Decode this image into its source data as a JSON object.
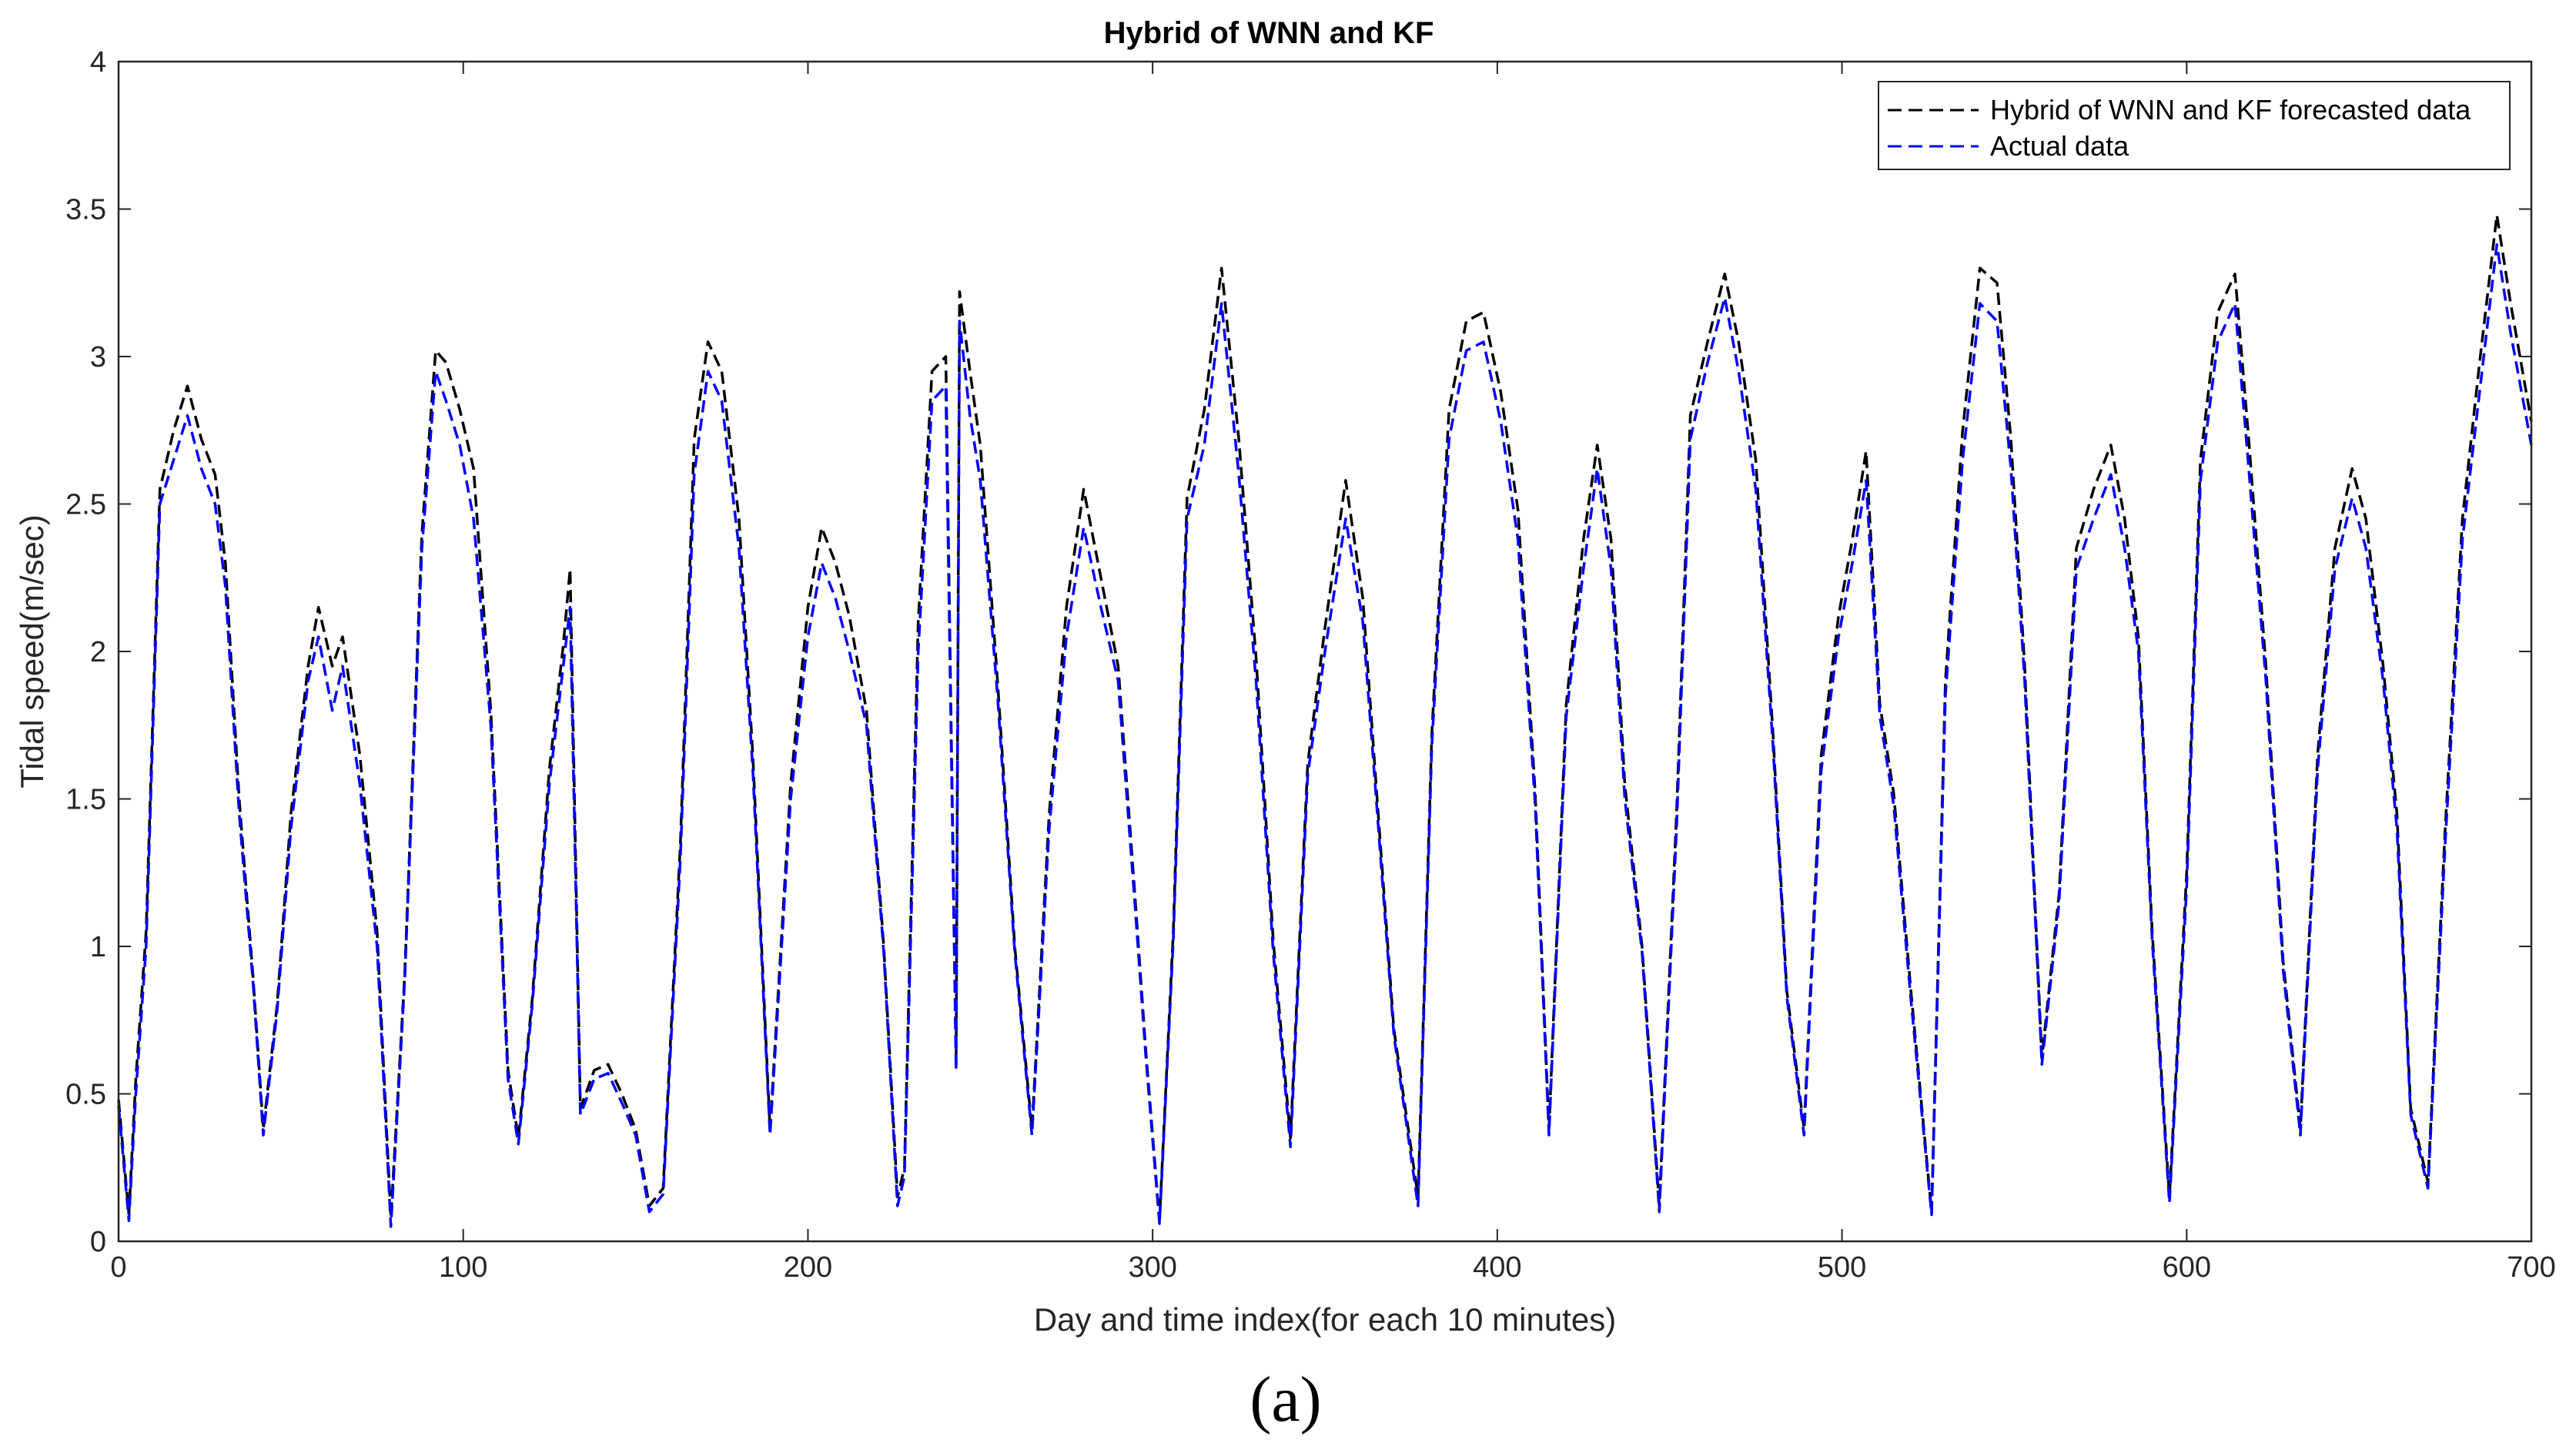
{
  "chart_data": {
    "type": "line",
    "title": "Hybrid of WNN and KF",
    "xlabel": "Day and time index(for each 10 minutes)",
    "ylabel": "Tidal speed(m/sec)",
    "panel_label": "(a)",
    "xlim": [
      0,
      700
    ],
    "ylim": [
      0,
      4
    ],
    "xticks": [
      0,
      100,
      200,
      300,
      400,
      500,
      600,
      700
    ],
    "yticks": [
      0,
      0.5,
      1,
      1.5,
      2,
      2.5,
      3,
      3.5,
      4
    ],
    "xtick_labels": [
      "0",
      "100",
      "200",
      "300",
      "400",
      "500",
      "600",
      "700"
    ],
    "ytick_labels": [
      "0",
      "0.5",
      "1",
      "1.5",
      "2",
      "2.5",
      "3",
      "3.5",
      "4"
    ],
    "grid": false,
    "legend_position": "top-right",
    "x": [
      0,
      3,
      5,
      8,
      12,
      16,
      20,
      24,
      28,
      31,
      35,
      39,
      42,
      46,
      50,
      55,
      58,
      62,
      65,
      70,
      75,
      79,
      83,
      88,
      92,
      95,
      99,
      103,
      108,
      113,
      116,
      120,
      125,
      129,
      131,
      134,
      138,
      142,
      146,
      150,
      154,
      158,
      163,
      167,
      171,
      175,
      180,
      184,
      189,
      195,
      200,
      204,
      208,
      212,
      217,
      222,
      226,
      228,
      232,
      236,
      240,
      243,
      244,
      247,
      250,
      255,
      260,
      265,
      270,
      275,
      280,
      285,
      290,
      295,
      298,
      302,
      306,
      310,
      315,
      320,
      325,
      330,
      335,
      340,
      345,
      350,
      356,
      361,
      365,
      370,
      377,
      381,
      386,
      391,
      396,
      401,
      406,
      411,
      415,
      420,
      425,
      429,
      433,
      437,
      442,
      447,
      452,
      456,
      461,
      466,
      470,
      475,
      480,
      484,
      489,
      494,
      499,
      503,
      507,
      511,
      515,
      520,
      526,
      530,
      535,
      540,
      545,
      549,
      553,
      558,
      563,
      568,
      573,
      578,
      582,
      586,
      590,
      595,
      600,
      604,
      609,
      614,
      618,
      623,
      628,
      633,
      638,
      643,
      648,
      652,
      657,
      661,
      665,
      670,
      675,
      680,
      685,
      690,
      694,
      700
    ],
    "series": [
      {
        "name": "Hybrid of WNN and KF forecasted data",
        "color": "#000000",
        "values": [
          0.48,
          0.09,
          0.55,
          1.05,
          2.55,
          2.75,
          2.9,
          2.72,
          2.6,
          2.3,
          1.5,
          0.9,
          0.38,
          0.8,
          1.45,
          1.95,
          2.15,
          1.95,
          2.05,
          1.65,
          1.05,
          0.08,
          0.9,
          2.4,
          3.02,
          2.98,
          2.82,
          2.62,
          1.8,
          0.58,
          0.35,
          0.82,
          1.6,
          2.02,
          2.28,
          0.45,
          0.58,
          0.6,
          0.5,
          0.38,
          0.12,
          0.18,
          1.35,
          2.72,
          3.05,
          2.95,
          2.45,
          1.65,
          0.38,
          1.55,
          2.15,
          2.42,
          2.3,
          2.12,
          1.8,
          1.0,
          0.15,
          0.25,
          2.1,
          2.95,
          3.0,
          0.6,
          3.22,
          2.95,
          2.7,
          1.9,
          1.0,
          0.38,
          1.45,
          2.15,
          2.55,
          2.25,
          1.95,
          1.15,
          0.65,
          0.07,
          1.05,
          2.52,
          2.82,
          3.3,
          2.72,
          1.98,
          1.02,
          0.35,
          1.62,
          2.08,
          2.58,
          2.18,
          1.52,
          0.72,
          0.15,
          1.72,
          2.82,
          3.12,
          3.15,
          2.88,
          2.48,
          1.52,
          0.38,
          1.82,
          2.38,
          2.7,
          2.38,
          1.55,
          1.0,
          0.12,
          1.45,
          2.8,
          3.05,
          3.28,
          3.05,
          2.65,
          1.72,
          0.85,
          0.38,
          1.65,
          2.12,
          2.38,
          2.68,
          1.82,
          1.52,
          0.85,
          0.1,
          1.9,
          2.75,
          3.3,
          3.25,
          2.72,
          1.95,
          0.62,
          1.18,
          2.35,
          2.55,
          2.7,
          2.45,
          2.05,
          1.05,
          0.15,
          1.25,
          2.65,
          3.15,
          3.28,
          2.72,
          1.95,
          0.95,
          0.38,
          1.65,
          2.35,
          2.62,
          2.45,
          1.95,
          1.45,
          0.45,
          0.2,
          1.4,
          2.45,
          2.98,
          3.48,
          3.18,
          2.78
        ]
      },
      {
        "name": "Actual data",
        "color": "#0000ff",
        "values": [
          0.46,
          0.07,
          0.5,
          1.0,
          2.5,
          2.65,
          2.8,
          2.62,
          2.5,
          2.22,
          1.45,
          0.88,
          0.36,
          0.78,
          1.4,
          1.9,
          2.05,
          1.8,
          1.95,
          1.55,
          1.0,
          0.05,
          0.88,
          2.35,
          2.95,
          2.85,
          2.7,
          2.45,
          1.75,
          0.55,
          0.33,
          0.8,
          1.55,
          1.95,
          2.15,
          0.43,
          0.55,
          0.57,
          0.47,
          0.36,
          0.1,
          0.16,
          1.3,
          2.6,
          2.95,
          2.85,
          2.35,
          1.6,
          0.36,
          1.5,
          2.05,
          2.3,
          2.18,
          2.0,
          1.75,
          0.98,
          0.12,
          0.22,
          2.0,
          2.85,
          2.9,
          0.58,
          3.12,
          2.8,
          2.58,
          1.85,
          0.98,
          0.36,
          1.4,
          2.05,
          2.42,
          2.15,
          1.9,
          1.12,
          0.63,
          0.06,
          1.02,
          2.45,
          2.7,
          3.18,
          2.6,
          1.9,
          0.98,
          0.32,
          1.58,
          2.0,
          2.45,
          2.1,
          1.48,
          0.7,
          0.12,
          1.68,
          2.72,
          3.02,
          3.05,
          2.78,
          2.38,
          1.48,
          0.36,
          1.78,
          2.28,
          2.62,
          2.28,
          1.5,
          0.98,
          0.1,
          1.4,
          2.72,
          2.98,
          3.2,
          2.95,
          2.55,
          1.68,
          0.83,
          0.36,
          1.6,
          2.05,
          2.3,
          2.58,
          1.78,
          1.48,
          0.82,
          0.09,
          1.85,
          2.65,
          3.18,
          3.12,
          2.62,
          1.9,
          0.6,
          1.15,
          2.28,
          2.45,
          2.6,
          2.35,
          2.0,
          1.02,
          0.13,
          1.2,
          2.58,
          3.05,
          3.18,
          2.62,
          1.9,
          0.92,
          0.36,
          1.6,
          2.28,
          2.52,
          2.35,
          1.9,
          1.4,
          0.43,
          0.18,
          1.35,
          2.38,
          2.88,
          3.38,
          3.08,
          2.7
        ]
      }
    ]
  }
}
